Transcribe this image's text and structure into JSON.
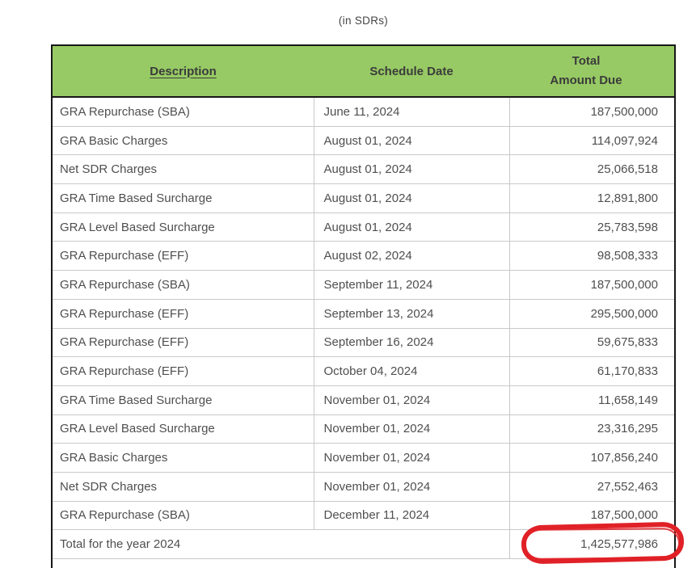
{
  "title": "(in SDRs)",
  "table": {
    "headers": {
      "description": "Description",
      "schedule_date": "Schedule Date",
      "total_line1": "Total",
      "total_line2": "Amount Due"
    },
    "rows": [
      {
        "description": "GRA Repurchase (SBA)",
        "schedule_date": "June 11, 2024",
        "amount": "187,500,000"
      },
      {
        "description": "GRA Basic Charges",
        "schedule_date": "August 01, 2024",
        "amount": "114,097,924"
      },
      {
        "description": "Net SDR Charges",
        "schedule_date": "August 01, 2024",
        "amount": "25,066,518"
      },
      {
        "description": "GRA Time Based Surcharge",
        "schedule_date": "August 01, 2024",
        "amount": "12,891,800"
      },
      {
        "description": "GRA Level Based Surcharge",
        "schedule_date": "August 01, 2024",
        "amount": "25,783,598"
      },
      {
        "description": "GRA Repurchase (EFF)",
        "schedule_date": "August 02, 2024",
        "amount": "98,508,333"
      },
      {
        "description": "GRA Repurchase (SBA)",
        "schedule_date": "September 11, 2024",
        "amount": "187,500,000"
      },
      {
        "description": "GRA Repurchase (EFF)",
        "schedule_date": "September 13, 2024",
        "amount": "295,500,000"
      },
      {
        "description": "GRA Repurchase (EFF)",
        "schedule_date": "September 16, 2024",
        "amount": "59,675,833"
      },
      {
        "description": "GRA Repurchase (EFF)",
        "schedule_date": "October 04, 2024",
        "amount": "61,170,833"
      },
      {
        "description": "GRA Time Based Surcharge",
        "schedule_date": "November 01, 2024",
        "amount": "11,658,149"
      },
      {
        "description": "GRA Level Based Surcharge",
        "schedule_date": "November 01, 2024",
        "amount": "23,316,295"
      },
      {
        "description": "GRA Basic Charges",
        "schedule_date": "November 01, 2024",
        "amount": "107,856,240"
      },
      {
        "description": "Net SDR Charges",
        "schedule_date": "November 01, 2024",
        "amount": "27,552,463"
      },
      {
        "description": "GRA Repurchase (SBA)",
        "schedule_date": "December 11, 2024",
        "amount": "187,500,000"
      }
    ],
    "total": {
      "label": "Total for the year 2024",
      "amount": "1,425,577,986"
    }
  },
  "annotation": {
    "shape": "hand-drawn-red-oval",
    "highlights": "1,425,577,986"
  },
  "colors": {
    "header_bg": "#97CA64",
    "header_text": "#3b3b3b",
    "text_body": "#4f4f4f",
    "text_dark": "#454545",
    "border_dark": "#171717",
    "grid_line": "#c9c9c9",
    "annotation_red": "#E02127"
  },
  "chart_data": {
    "type": "table",
    "title": "(in SDRs)",
    "columns": [
      "Description",
      "Schedule Date",
      "Total Amount Due"
    ],
    "rows": [
      [
        "GRA Repurchase (SBA)",
        "June 11, 2024",
        187500000
      ],
      [
        "GRA Basic Charges",
        "August 01, 2024",
        114097924
      ],
      [
        "Net SDR Charges",
        "August 01, 2024",
        25066518
      ],
      [
        "GRA Time Based Surcharge",
        "August 01, 2024",
        12891800
      ],
      [
        "GRA Level Based Surcharge",
        "August 01, 2024",
        25783598
      ],
      [
        "GRA Repurchase (EFF)",
        "August 02, 2024",
        98508333
      ],
      [
        "GRA Repurchase (SBA)",
        "September 11, 2024",
        187500000
      ],
      [
        "GRA Repurchase (EFF)",
        "September 13, 2024",
        295500000
      ],
      [
        "GRA Repurchase (EFF)",
        "September 16, 2024",
        59675833
      ],
      [
        "GRA Repurchase (EFF)",
        "October 04, 2024",
        61170833
      ],
      [
        "GRA Time Based Surcharge",
        "November 01, 2024",
        11658149
      ],
      [
        "GRA Level Based Surcharge",
        "November 01, 2024",
        23316295
      ],
      [
        "GRA Basic Charges",
        "November 01, 2024",
        107856240
      ],
      [
        "Net SDR Charges",
        "November 01, 2024",
        27552463
      ],
      [
        "GRA Repurchase (SBA)",
        "December 11, 2024",
        187500000
      ]
    ],
    "total_row": [
      "Total for the year 2024",
      "",
      1425577986
    ],
    "annotations": [
      "red circle around total amount 1,425,577,986"
    ]
  }
}
